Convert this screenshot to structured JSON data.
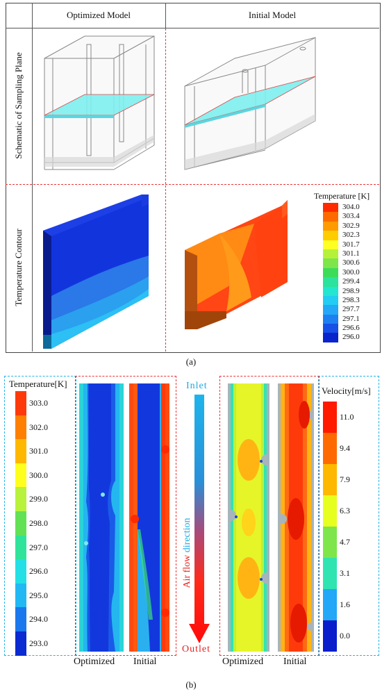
{
  "panel_a": {
    "col_headers": [
      "Optimized Model",
      "Initial Model"
    ],
    "row_labels": [
      "Schematic of Sampling Plane",
      "Temperature Contour"
    ],
    "legend_title": "Temperature [K]",
    "legend_values": [
      "304.0",
      "303.4",
      "302.9",
      "302.3",
      "301.7",
      "301.1",
      "300.6",
      "300.0",
      "299.4",
      "298.9",
      "298.3",
      "297.7",
      "297.1",
      "296.6",
      "296.0"
    ],
    "legend_colors": [
      "#ff2a00",
      "#ff6a00",
      "#ff9a00",
      "#ffcc00",
      "#ffff22",
      "#b6f13a",
      "#7ee64a",
      "#3cdc58",
      "#2be39c",
      "#22e6d0",
      "#22ccf2",
      "#22a8f6",
      "#1c80f2",
      "#1650e6",
      "#0a24cc"
    ],
    "caption": "(a)"
  },
  "panel_b": {
    "temp_legend_title": "Temperature[K]",
    "temp_legend_values": [
      "303.0",
      "302.0",
      "301.0",
      "300.0",
      "299.0",
      "298.0",
      "297.0",
      "296.0",
      "295.0",
      "294.0",
      "293.0"
    ],
    "temp_legend_colors": [
      "#ff3a0a",
      "#ff7f00",
      "#ffb800",
      "#ffff1e",
      "#b8f23c",
      "#62e155",
      "#2fe49a",
      "#22e0e6",
      "#22b8f4",
      "#1a78ee",
      "#0a2ad2"
    ],
    "inlet": "Inlet",
    "outlet": "Outlet",
    "airflow_a": "Air flow ",
    "airflow_b": "direction",
    "vel_legend_title": "Velocity[m/s]",
    "vel_legend_values": [
      "11.0",
      "9.4",
      "7.9",
      "6.3",
      "4.7",
      "3.1",
      "1.6",
      "0.0"
    ],
    "vel_legend_colors": [
      "#ff1a00",
      "#ff6a00",
      "#ffb800",
      "#e6ff1e",
      "#7ee64a",
      "#2fe4b0",
      "#22a8f6",
      "#0a1ecc"
    ],
    "labels_temp": [
      "Optimized",
      "Initial"
    ],
    "labels_vel": [
      "Optimized",
      "Initial"
    ],
    "caption": "(b)"
  }
}
